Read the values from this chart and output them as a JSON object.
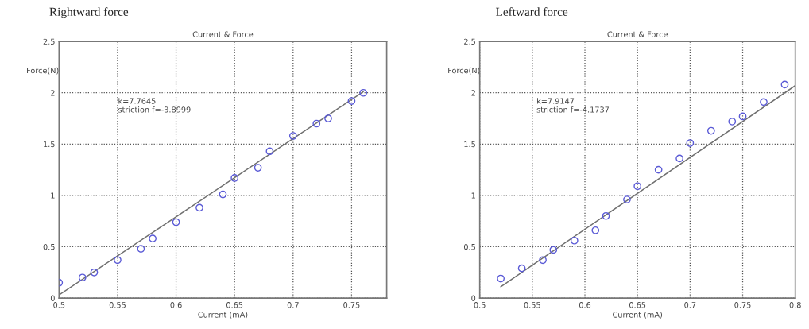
{
  "chart_data": [
    {
      "type": "scatter",
      "title": "Current & Force",
      "xlabel": "Current (mA)",
      "ylabel": "Force(N)",
      "annotations": [
        "Rightward force",
        "k=7.7645\nstriction f=-3.8999"
      ],
      "xlim": [
        0.5,
        0.78
      ],
      "xticks": [
        0.5,
        0.55,
        0.6,
        0.65,
        0.7,
        0.75
      ],
      "ylim": [
        0,
        2.5
      ],
      "yticks": [
        0,
        0.5,
        1,
        1.5,
        2,
        2.5
      ],
      "grid": true,
      "series": [
        {
          "type": "scatter",
          "color": "#5b5bd6",
          "marker": "circle",
          "x": [
            0.5,
            0.52,
            0.53,
            0.55,
            0.57,
            0.58,
            0.6,
            0.62,
            0.64,
            0.65,
            0.67,
            0.68,
            0.7,
            0.72,
            0.73,
            0.75,
            0.76
          ],
          "values": [
            0.15,
            0.2,
            0.25,
            0.37,
            0.48,
            0.58,
            0.74,
            0.88,
            1.01,
            1.17,
            1.27,
            1.43,
            1.58,
            1.7,
            1.75,
            1.92,
            2.0
          ]
        },
        {
          "type": "line",
          "color": "#707070",
          "marker": "none",
          "line_style": "solid",
          "x": [
            0.5,
            0.76
          ],
          "values": [
            0.03,
            2.01
          ]
        }
      ]
    },
    {
      "type": "scatter",
      "title": "Current & Force",
      "xlabel": "Current (mA)",
      "ylabel": "Force(N)",
      "annotations": [
        "Leftward force",
        "k=7.9147\nstriction f=-4.1737"
      ],
      "xlim": [
        0.5,
        0.8
      ],
      "xticks": [
        0.5,
        0.55,
        0.6,
        0.65,
        0.7,
        0.75,
        0.8
      ],
      "ylim": [
        0,
        2.5
      ],
      "yticks": [
        0,
        0.5,
        1,
        1.5,
        2,
        2.5
      ],
      "grid": true,
      "series": [
        {
          "type": "scatter",
          "color": "#5b5bd6",
          "marker": "circle",
          "x": [
            0.52,
            0.54,
            0.56,
            0.57,
            0.59,
            0.61,
            0.62,
            0.64,
            0.65,
            0.67,
            0.69,
            0.7,
            0.72,
            0.74,
            0.75,
            0.77,
            0.79
          ],
          "values": [
            0.19,
            0.29,
            0.37,
            0.47,
            0.56,
            0.66,
            0.8,
            0.96,
            1.09,
            1.25,
            1.36,
            1.51,
            1.63,
            1.72,
            1.77,
            1.91,
            2.08
          ]
        },
        {
          "type": "line",
          "color": "#707070",
          "marker": "none",
          "line_style": "solid",
          "x": [
            0.52,
            0.8
          ],
          "values": [
            0.11,
            2.07
          ]
        }
      ]
    }
  ]
}
